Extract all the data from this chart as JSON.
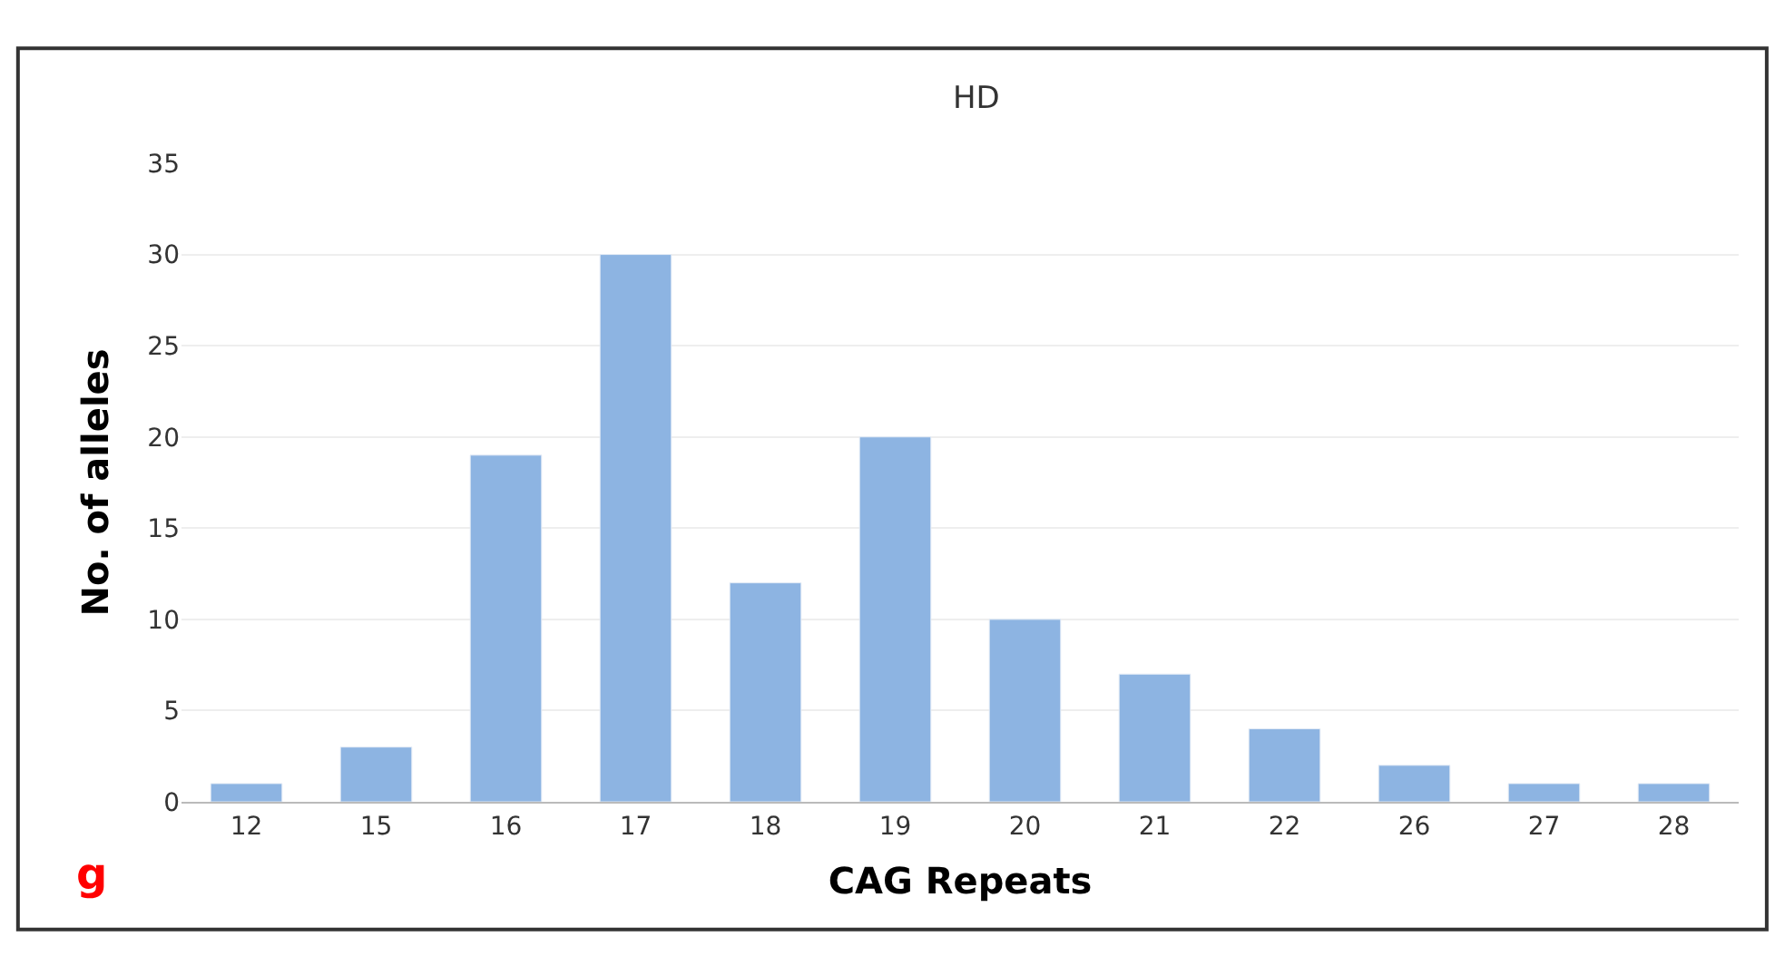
{
  "chart_data": {
    "type": "bar",
    "title": "HD",
    "xlabel": "CAG Repeats",
    "ylabel": "No. of alleles",
    "categories": [
      "12",
      "15",
      "16",
      "17",
      "18",
      "19",
      "20",
      "21",
      "22",
      "26",
      "27",
      "28"
    ],
    "values": [
      1,
      3,
      19,
      30,
      12,
      20,
      10,
      7,
      4,
      2,
      1,
      1
    ],
    "color": "#8db4e2",
    "ylim": [
      0,
      35
    ],
    "yticks": [
      0,
      5,
      10,
      15,
      20,
      25,
      30,
      35
    ],
    "grid": "y",
    "annotations": [
      "g"
    ]
  }
}
